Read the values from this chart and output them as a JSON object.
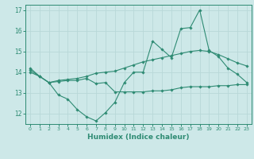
{
  "x": [
    0,
    1,
    2,
    3,
    4,
    5,
    6,
    7,
    8,
    9,
    10,
    11,
    12,
    13,
    14,
    15,
    16,
    17,
    18,
    19,
    20,
    21,
    22,
    23
  ],
  "line1": [
    14.2,
    13.8,
    13.5,
    12.9,
    12.7,
    12.2,
    11.85,
    11.65,
    12.05,
    12.55,
    13.5,
    14.0,
    14.0,
    15.5,
    15.1,
    14.7,
    16.1,
    16.15,
    17.0,
    15.05,
    14.75,
    14.2,
    13.9,
    13.5
  ],
  "line2": [
    14.1,
    13.8,
    13.5,
    13.55,
    13.6,
    13.6,
    13.7,
    13.45,
    13.5,
    13.05,
    13.05,
    13.05,
    13.05,
    13.1,
    13.1,
    13.15,
    13.25,
    13.3,
    13.3,
    13.3,
    13.35,
    13.35,
    13.4,
    13.4
  ],
  "line3": [
    14.0,
    13.8,
    13.5,
    13.6,
    13.65,
    13.7,
    13.8,
    13.95,
    14.0,
    14.05,
    14.2,
    14.35,
    14.5,
    14.6,
    14.7,
    14.8,
    14.9,
    15.0,
    15.05,
    15.0,
    14.85,
    14.65,
    14.45,
    14.3
  ],
  "line_color": "#2e8b73",
  "bg_color": "#cde8e8",
  "grid_color": "#b8d8d8",
  "xlabel": "Humidex (Indice chaleur)",
  "ylim": [
    11.5,
    17.25
  ],
  "xlim": [
    -0.5,
    23.5
  ],
  "yticks": [
    12,
    13,
    14,
    15,
    16,
    17
  ],
  "xticks": [
    0,
    1,
    2,
    3,
    4,
    5,
    6,
    7,
    8,
    9,
    10,
    11,
    12,
    13,
    14,
    15,
    16,
    17,
    18,
    19,
    20,
    21,
    22,
    23
  ]
}
